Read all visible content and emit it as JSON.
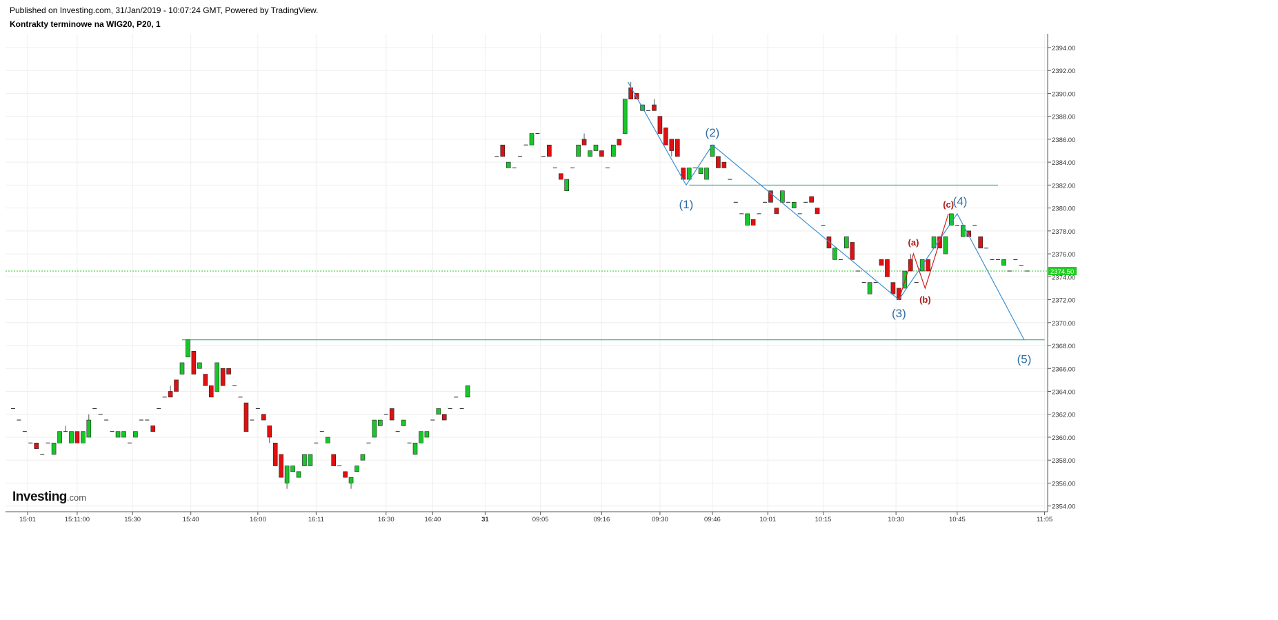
{
  "header": {
    "published": "Published on Investing.com, 31/Jan/2019 - 10:07:24 GMT, Powered by TradingView.",
    "instrument": "Kontrakty terminowe na WIG20, P20, 1"
  },
  "logo": {
    "main": "Investing",
    "domain": ".com"
  },
  "colors": {
    "up": "#19c52b",
    "down": "#dd1111",
    "wave": "#3d8fd0",
    "sub_wave": "#cc2020",
    "level_line": "#1aa37a",
    "last_price_line": "#22cc22",
    "grid": "#eeeeee"
  },
  "chart_data": {
    "type": "candlestick",
    "title": "Kontrakty terminowe na WIG20, P20, 1",
    "ylim": [
      2353.5,
      2395.2
    ],
    "y_ticks": [
      "2394.00",
      "2392.00",
      "2390.00",
      "2388.00",
      "2386.00",
      "2384.00",
      "2382.00",
      "2380.00",
      "2378.00",
      "2376.00",
      "2374.00",
      "2372.00",
      "2370.00",
      "2368.00",
      "2366.00",
      "2364.00",
      "2362.00",
      "2360.00",
      "2358.00",
      "2356.00",
      "2354.00"
    ],
    "x_ticks": [
      {
        "label": "15:01",
        "slot": 3.5
      },
      {
        "label": "15:11:00",
        "slot": 12
      },
      {
        "label": "15:30",
        "slot": 21.5
      },
      {
        "label": "15:40",
        "slot": 31.5
      },
      {
        "label": "16:00",
        "slot": 43
      },
      {
        "label": "16:11",
        "slot": 53
      },
      {
        "label": "16:30",
        "slot": 65
      },
      {
        "label": "16:40",
        "slot": 73
      },
      {
        "label": "31",
        "slot": 82,
        "bold": true
      },
      {
        "label": "09:05",
        "slot": 91.5
      },
      {
        "label": "09:16",
        "slot": 102
      },
      {
        "label": "09:30",
        "slot": 112
      },
      {
        "label": "09:46",
        "slot": 121
      },
      {
        "label": "10:01",
        "slot": 130.5
      },
      {
        "label": "10:15",
        "slot": 140
      },
      {
        "label": "10:30",
        "slot": 152.5
      },
      {
        "label": "10:45",
        "slot": 163
      },
      {
        "label": "11:05",
        "slot": 178
      }
    ],
    "last_price": "2374.50",
    "candles": [
      [
        1,
        2362.5,
        2362.5,
        2362.5,
        2362.5
      ],
      [
        2,
        2361.5,
        2361.5,
        2361.5,
        2361.5
      ],
      [
        3,
        2360.5,
        2360.5,
        2360.5,
        2360.5
      ],
      [
        4,
        2359.5,
        2359.5,
        2359.5,
        2359.5
      ],
      [
        5,
        2359.5,
        2359.5,
        2359.0,
        2359.0
      ],
      [
        6,
        2358.5,
        2358.5,
        2358.5,
        2358.5
      ],
      [
        7,
        2359.5,
        2359.5,
        2359.5,
        2359.5
      ],
      [
        8,
        2358.5,
        2359.5,
        2358.5,
        2359.5
      ],
      [
        9,
        2359.5,
        2360.5,
        2359.5,
        2360.5
      ],
      [
        10,
        2360.5,
        2361.0,
        2360.5,
        2360.5
      ],
      [
        11,
        2359.5,
        2360.5,
        2359.5,
        2360.5
      ],
      [
        12,
        2360.5,
        2360.5,
        2359.5,
        2359.5
      ],
      [
        13,
        2359.5,
        2360.5,
        2359.5,
        2360.5
      ],
      [
        14,
        2360.0,
        2362.0,
        2360.0,
        2361.5
      ],
      [
        15,
        2362.5,
        2362.5,
        2362.5,
        2362.5
      ],
      [
        16,
        2362.0,
        2362.0,
        2362.0,
        2362.0
      ],
      [
        17,
        2361.5,
        2361.5,
        2361.5,
        2361.5
      ],
      [
        18,
        2360.5,
        2360.5,
        2360.5,
        2360.5
      ],
      [
        19,
        2360.0,
        2360.5,
        2360.0,
        2360.5
      ],
      [
        20,
        2360.0,
        2360.5,
        2360.0,
        2360.5
      ],
      [
        21,
        2359.5,
        2359.5,
        2359.5,
        2359.5
      ],
      [
        22,
        2360.0,
        2360.5,
        2360.0,
        2360.5
      ],
      [
        23,
        2361.5,
        2361.5,
        2361.5,
        2361.5
      ],
      [
        24,
        2361.5,
        2361.5,
        2361.5,
        2361.5
      ],
      [
        25,
        2361.0,
        2361.0,
        2360.5,
        2360.5
      ],
      [
        26,
        2362.5,
        2362.5,
        2362.5,
        2362.5
      ],
      [
        27,
        2363.5,
        2363.5,
        2363.5,
        2363.5
      ],
      [
        28,
        2364.0,
        2364.5,
        2363.5,
        2363.5
      ],
      [
        29,
        2365.0,
        2365.0,
        2364.0,
        2364.0
      ],
      [
        30,
        2365.5,
        2366.5,
        2365.5,
        2366.5
      ],
      [
        31,
        2367.0,
        2368.5,
        2367.0,
        2368.5
      ],
      [
        32,
        2367.5,
        2367.5,
        2365.5,
        2365.5
      ],
      [
        33,
        2366.0,
        2366.5,
        2366.0,
        2366.5
      ],
      [
        34,
        2365.5,
        2365.5,
        2364.5,
        2364.5
      ],
      [
        35,
        2364.5,
        2364.5,
        2363.5,
        2363.5
      ],
      [
        36,
        2364.0,
        2366.5,
        2364.0,
        2366.5
      ],
      [
        37,
        2366.0,
        2366.0,
        2364.5,
        2364.5
      ],
      [
        38,
        2366.0,
        2366.0,
        2365.5,
        2365.5
      ],
      [
        39,
        2364.5,
        2364.5,
        2364.5,
        2364.5
      ],
      [
        40,
        2363.5,
        2363.5,
        2363.5,
        2363.5
      ],
      [
        41,
        2363.0,
        2363.0,
        2360.5,
        2360.5
      ],
      [
        42,
        2361.5,
        2361.5,
        2361.5,
        2361.5
      ],
      [
        43,
        2362.5,
        2362.5,
        2362.5,
        2362.5
      ],
      [
        44,
        2362.0,
        2362.0,
        2361.5,
        2361.5
      ],
      [
        45,
        2361.0,
        2361.0,
        2359.5,
        2360.0
      ],
      [
        46,
        2359.5,
        2359.5,
        2357.5,
        2357.5
      ],
      [
        47,
        2358.5,
        2358.5,
        2356.5,
        2356.5
      ],
      [
        48,
        2356.0,
        2357.5,
        2355.5,
        2357.5
      ],
      [
        49,
        2357.0,
        2357.5,
        2357.0,
        2357.5
      ],
      [
        50,
        2356.5,
        2357.0,
        2356.5,
        2357.0
      ],
      [
        51,
        2357.5,
        2358.5,
        2357.5,
        2358.5
      ],
      [
        52,
        2357.5,
        2358.5,
        2357.5,
        2358.5
      ],
      [
        53,
        2359.5,
        2359.5,
        2359.5,
        2359.5
      ],
      [
        54,
        2360.5,
        2360.5,
        2360.5,
        2360.5
      ],
      [
        55,
        2359.5,
        2360.0,
        2359.5,
        2360.0
      ],
      [
        56,
        2358.5,
        2358.5,
        2357.5,
        2357.5
      ],
      [
        57,
        2357.5,
        2357.5,
        2357.5,
        2357.5
      ],
      [
        58,
        2357.0,
        2357.0,
        2356.5,
        2356.5
      ],
      [
        59,
        2356.0,
        2356.5,
        2355.5,
        2356.5
      ],
      [
        60,
        2357.0,
        2357.5,
        2357.0,
        2357.5
      ],
      [
        61,
        2358.0,
        2358.5,
        2358.0,
        2358.5
      ],
      [
        62,
        2359.5,
        2359.5,
        2359.5,
        2359.5
      ],
      [
        63,
        2360.0,
        2361.5,
        2360.0,
        2361.5
      ],
      [
        64,
        2361.0,
        2361.5,
        2361.0,
        2361.5
      ],
      [
        65,
        2362.0,
        2362.0,
        2362.0,
        2362.0
      ],
      [
        66,
        2362.5,
        2362.5,
        2361.5,
        2361.5
      ],
      [
        67,
        2360.5,
        2360.5,
        2360.5,
        2360.5
      ],
      [
        68,
        2361.0,
        2361.5,
        2361.0,
        2361.5
      ],
      [
        69,
        2359.5,
        2359.5,
        2359.5,
        2359.5
      ],
      [
        70,
        2358.5,
        2359.5,
        2358.5,
        2359.5
      ],
      [
        71,
        2359.5,
        2360.5,
        2359.5,
        2360.5
      ],
      [
        72,
        2360.0,
        2360.5,
        2360.0,
        2360.5
      ],
      [
        73,
        2361.5,
        2361.5,
        2361.5,
        2361.5
      ],
      [
        74,
        2362.0,
        2362.5,
        2362.0,
        2362.5
      ],
      [
        75,
        2362.0,
        2362.0,
        2361.5,
        2361.5
      ],
      [
        76,
        2362.5,
        2362.5,
        2362.5,
        2362.5
      ],
      [
        77,
        2363.5,
        2363.5,
        2363.5,
        2363.5
      ],
      [
        78,
        2362.5,
        2362.5,
        2362.5,
        2362.5
      ],
      [
        79,
        2363.5,
        2364.5,
        2363.5,
        2364.5
      ],
      [
        84,
        2384.5,
        2384.5,
        2384.5,
        2384.5
      ],
      [
        85,
        2385.5,
        2385.5,
        2384.5,
        2384.5
      ],
      [
        86,
        2383.5,
        2384.0,
        2383.5,
        2384.0
      ],
      [
        87,
        2383.5,
        2383.5,
        2383.5,
        2383.5
      ],
      [
        88,
        2384.5,
        2384.5,
        2384.5,
        2384.5
      ],
      [
        89,
        2385.5,
        2385.5,
        2385.5,
        2385.5
      ],
      [
        90,
        2385.5,
        2386.5,
        2385.5,
        2386.5
      ],
      [
        91,
        2386.5,
        2386.5,
        2386.5,
        2386.5
      ],
      [
        92,
        2384.5,
        2384.5,
        2384.5,
        2384.5
      ],
      [
        93,
        2385.5,
        2385.5,
        2384.5,
        2384.5
      ],
      [
        94,
        2383.5,
        2383.5,
        2383.5,
        2383.5
      ],
      [
        95,
        2383.0,
        2383.0,
        2382.5,
        2382.5
      ],
      [
        96,
        2381.5,
        2382.5,
        2381.5,
        2382.5
      ],
      [
        97,
        2383.5,
        2383.5,
        2383.5,
        2383.5
      ],
      [
        98,
        2384.5,
        2385.5,
        2384.5,
        2385.5
      ],
      [
        99,
        2386.0,
        2386.5,
        2385.5,
        2385.5
      ],
      [
        100,
        2384.5,
        2385.0,
        2384.5,
        2385.0
      ],
      [
        101,
        2385.0,
        2385.5,
        2385.0,
        2385.5
      ],
      [
        102,
        2385.0,
        2385.0,
        2384.5,
        2384.5
      ],
      [
        103,
        2383.5,
        2383.5,
        2383.5,
        2383.5
      ],
      [
        104,
        2384.5,
        2385.5,
        2384.5,
        2385.5
      ],
      [
        105,
        2386.0,
        2386.0,
        2385.5,
        2385.5
      ],
      [
        106,
        2386.5,
        2389.5,
        2386.5,
        2389.5
      ],
      [
        107,
        2390.5,
        2391.0,
        2389.5,
        2389.5
      ],
      [
        108,
        2390.0,
        2390.0,
        2389.5,
        2389.5
      ],
      [
        109,
        2388.5,
        2389.0,
        2388.5,
        2389.0
      ],
      [
        110,
        2388.5,
        2388.5,
        2388.5,
        2388.5
      ],
      [
        111,
        2389.0,
        2389.5,
        2388.5,
        2388.5
      ],
      [
        112,
        2388.0,
        2388.0,
        2386.5,
        2386.5
      ],
      [
        113,
        2387.0,
        2387.0,
        2385.5,
        2385.5
      ],
      [
        114,
        2386.0,
        2386.0,
        2384.5,
        2385.0
      ],
      [
        115,
        2386.0,
        2386.0,
        2384.5,
        2384.5
      ],
      [
        116,
        2383.5,
        2383.5,
        2382.5,
        2382.5
      ],
      [
        117,
        2382.5,
        2383.5,
        2382.5,
        2383.5
      ],
      [
        118,
        2383.5,
        2383.5,
        2383.5,
        2383.5
      ],
      [
        119,
        2383.0,
        2383.5,
        2383.0,
        2383.5
      ],
      [
        120,
        2382.5,
        2383.5,
        2382.5,
        2383.5
      ],
      [
        121,
        2384.5,
        2385.5,
        2384.5,
        2385.5
      ],
      [
        122,
        2384.5,
        2384.5,
        2383.5,
        2383.5
      ],
      [
        123,
        2384.0,
        2384.0,
        2383.5,
        2383.5
      ],
      [
        124,
        2382.5,
        2382.5,
        2382.5,
        2382.5
      ],
      [
        125,
        2380.5,
        2380.5,
        2380.5,
        2380.5
      ],
      [
        126,
        2379.5,
        2379.5,
        2379.5,
        2379.5
      ],
      [
        127,
        2378.5,
        2379.5,
        2378.5,
        2379.5
      ],
      [
        128,
        2379.0,
        2379.0,
        2378.5,
        2378.5
      ],
      [
        129,
        2379.5,
        2379.5,
        2379.5,
        2379.5
      ],
      [
        130,
        2380.5,
        2380.5,
        2380.5,
        2380.5
      ],
      [
        131,
        2381.5,
        2381.5,
        2380.5,
        2380.5
      ],
      [
        132,
        2380.0,
        2380.0,
        2379.5,
        2379.5
      ],
      [
        133,
        2380.5,
        2381.5,
        2380.5,
        2381.5
      ],
      [
        134,
        2380.5,
        2380.5,
        2380.5,
        2380.5
      ],
      [
        135,
        2380.0,
        2380.5,
        2380.0,
        2380.5
      ],
      [
        136,
        2379.5,
        2379.5,
        2379.5,
        2379.5
      ],
      [
        137,
        2380.5,
        2380.5,
        2380.5,
        2380.5
      ],
      [
        138,
        2381.0,
        2381.0,
        2380.5,
        2380.5
      ],
      [
        139,
        2380.0,
        2380.0,
        2379.5,
        2379.5
      ],
      [
        140,
        2378.5,
        2378.5,
        2378.5,
        2378.5
      ],
      [
        141,
        2377.5,
        2377.5,
        2376.5,
        2376.5
      ],
      [
        142,
        2375.5,
        2376.5,
        2375.5,
        2376.5
      ],
      [
        143,
        2375.5,
        2375.5,
        2375.5,
        2375.5
      ],
      [
        144,
        2376.5,
        2377.5,
        2376.5,
        2377.5
      ],
      [
        145,
        2377.0,
        2377.0,
        2375.5,
        2375.5
      ],
      [
        146,
        2374.5,
        2374.5,
        2374.5,
        2374.5
      ],
      [
        147,
        2373.5,
        2373.5,
        2373.5,
        2373.5
      ],
      [
        148,
        2372.5,
        2373.5,
        2372.5,
        2373.5
      ],
      [
        149,
        2373.5,
        2373.5,
        2373.5,
        2373.5
      ],
      [
        150,
        2375.5,
        2375.5,
        2375.0,
        2375.0
      ],
      [
        151,
        2375.5,
        2375.5,
        2374.0,
        2374.0
      ],
      [
        152,
        2373.5,
        2373.5,
        2372.5,
        2372.5
      ],
      [
        153,
        2373.0,
        2373.0,
        2372.0,
        2372.0
      ],
      [
        154,
        2373.0,
        2374.5,
        2373.0,
        2374.5
      ],
      [
        155,
        2375.5,
        2376.0,
        2374.5,
        2374.5
      ],
      [
        156,
        2373.5,
        2373.5,
        2373.5,
        2373.5
      ],
      [
        157,
        2374.5,
        2375.5,
        2374.5,
        2375.5
      ],
      [
        158,
        2375.5,
        2375.5,
        2374.5,
        2374.5
      ],
      [
        159,
        2376.5,
        2377.5,
        2376.5,
        2377.5
      ],
      [
        160,
        2377.5,
        2377.5,
        2376.5,
        2376.5
      ],
      [
        161,
        2376.0,
        2377.5,
        2376.0,
        2377.5
      ],
      [
        162,
        2378.5,
        2379.5,
        2378.5,
        2379.5
      ],
      [
        163,
        2378.5,
        2378.5,
        2378.5,
        2378.5
      ],
      [
        164,
        2377.5,
        2378.5,
        2377.5,
        2378.5
      ],
      [
        165,
        2378.0,
        2378.0,
        2377.5,
        2377.5
      ],
      [
        166,
        2378.5,
        2378.5,
        2378.5,
        2378.5
      ],
      [
        167,
        2377.5,
        2377.5,
        2376.5,
        2376.5
      ],
      [
        168,
        2376.5,
        2376.5,
        2376.5,
        2376.5
      ],
      [
        169,
        2375.5,
        2375.5,
        2375.5,
        2375.5
      ],
      [
        170,
        2375.5,
        2375.5,
        2375.5,
        2375.5
      ],
      [
        171,
        2375.0,
        2375.5,
        2375.0,
        2375.5
      ],
      [
        172,
        2374.5,
        2374.5,
        2374.5,
        2374.5
      ],
      [
        173,
        2375.5,
        2375.5,
        2375.5,
        2375.5
      ],
      [
        174,
        2375.0,
        2375.0,
        2375.0,
        2375.0
      ],
      [
        175,
        2374.5,
        2374.5,
        2374.5,
        2374.5
      ]
    ],
    "level_lines": [
      {
        "price": 2368.5,
        "from_slot": 30,
        "to_slot": 178
      },
      {
        "price": 2382.0,
        "from_slot": 117,
        "to_slot": 170
      }
    ],
    "wave_line": [
      [
        106.5,
        2391.0
      ],
      [
        116.5,
        2382.0
      ],
      [
        121.0,
        2385.5
      ],
      [
        153.0,
        2372.0
      ],
      [
        163.0,
        2379.5
      ],
      [
        174.5,
        2368.5
      ]
    ],
    "wave_labels": [
      {
        "text": "(1)",
        "slot": 116.5,
        "price": 2381.0,
        "pos": "below"
      },
      {
        "text": "(2)",
        "slot": 121.0,
        "price": 2386.0,
        "pos": "above"
      },
      {
        "text": "(3)",
        "slot": 153.0,
        "price": 2371.5,
        "pos": "below"
      },
      {
        "text": "(4)",
        "slot": 163.5,
        "price": 2380.0,
        "pos": "above"
      },
      {
        "text": "(5)",
        "slot": 174.5,
        "price": 2367.5,
        "pos": "below"
      }
    ],
    "sub_wave_line": [
      [
        153.0,
        2372.0
      ],
      [
        155.5,
        2376.0
      ],
      [
        157.5,
        2373.0
      ],
      [
        161.5,
        2379.5
      ]
    ],
    "sub_wave_labels": [
      {
        "text": "(a)",
        "slot": 155.5,
        "price": 2376.5,
        "pos": "above"
      },
      {
        "text": "(b)",
        "slot": 157.5,
        "price": 2372.5,
        "pos": "below"
      },
      {
        "text": "(c)",
        "slot": 161.5,
        "price": 2379.8,
        "pos": "above"
      }
    ]
  }
}
